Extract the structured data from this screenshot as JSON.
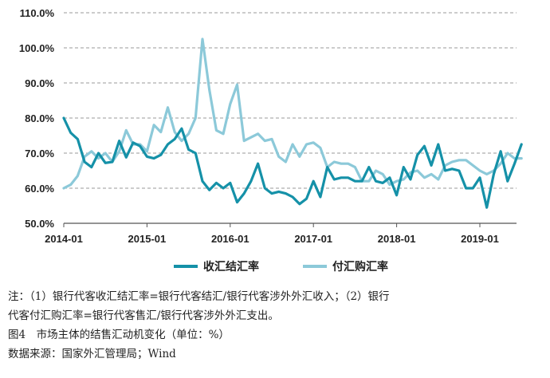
{
  "chart_data": {
    "type": "line",
    "title": "",
    "xlabel": "",
    "ylabel": "",
    "ylim": [
      50,
      110
    ],
    "yticks": [
      "50.0%",
      "60.0%",
      "70.0%",
      "80.0%",
      "90.0%",
      "100.0%",
      "110.0%"
    ],
    "ytick_values": [
      50,
      60,
      70,
      80,
      90,
      100,
      110
    ],
    "xticks": [
      "2014-01",
      "2015-01",
      "2016-01",
      "2017-01",
      "2018-01",
      "2019-01"
    ],
    "xtick_index": [
      0,
      12,
      24,
      36,
      48,
      60
    ],
    "grid": "horizontal-dashed",
    "legend_position": "bottom-center",
    "series": [
      {
        "name": "收汇结汇率",
        "color": "#1591a8",
        "values": [
          80.0,
          75.8,
          74.0,
          67.5,
          66.0,
          70.0,
          67.2,
          67.5,
          73.5,
          68.8,
          73.0,
          72.0,
          69.0,
          68.5,
          69.5,
          72.5,
          74.0,
          77.0,
          71.0,
          70.0,
          62.0,
          59.5,
          61.5,
          60.0,
          61.5,
          56.0,
          58.5,
          62.0,
          67.0,
          60.0,
          58.5,
          59.0,
          58.5,
          57.5,
          55.5,
          57.0,
          62.0,
          57.5,
          66.0,
          62.5,
          63.0,
          63.0,
          62.0,
          62.0,
          66.0,
          62.0,
          61.5,
          63.0,
          58.0,
          66.0,
          62.5,
          69.5,
          72.0,
          66.5,
          72.5,
          65.0,
          65.5,
          65.0,
          60.0,
          60.0,
          63.0,
          54.5,
          64.0,
          70.5,
          62.0,
          67.0,
          72.5
        ]
      },
      {
        "name": "付汇购汇率",
        "color": "#8cc9d9",
        "values": [
          60.0,
          61.0,
          63.5,
          69.0,
          70.5,
          68.5,
          70.0,
          67.5,
          70.5,
          76.5,
          72.5,
          72.5,
          70.5,
          78.0,
          76.0,
          83.0,
          76.0,
          73.5,
          75.5,
          80.0,
          102.5,
          88.0,
          76.5,
          75.5,
          84.0,
          89.5,
          73.5,
          74.5,
          75.5,
          73.5,
          74.0,
          69.0,
          67.5,
          72.5,
          69.0,
          72.5,
          73.0,
          71.5,
          66.0,
          67.5,
          67.0,
          67.0,
          66.0,
          62.0,
          62.0,
          65.0,
          64.0,
          61.0,
          62.0,
          62.5,
          64.5,
          65.0,
          63.0,
          64.0,
          62.5,
          66.5,
          67.5,
          68.0,
          68.0,
          66.5,
          65.0,
          64.0,
          65.0,
          67.0,
          70.0,
          68.5,
          68.5
        ]
      }
    ]
  },
  "notes": {
    "line1": "注：（1）银行代客收汇结汇率=银行代客结汇/银行代客涉外外汇收入；（2）银行",
    "line2": "代客付汇购汇率=银行代客售汇/银行代客涉外外汇支出。",
    "figure_title": "图4　市场主体的结售汇动机变化（单位：%）",
    "source": "数据来源：国家外汇管理局；Wind"
  }
}
